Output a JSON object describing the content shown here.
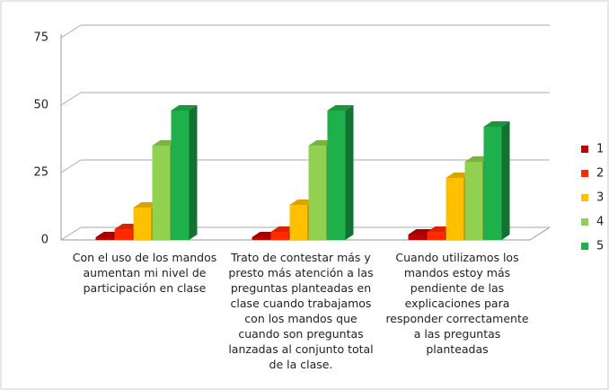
{
  "chart_data": {
    "type": "bar3d",
    "categories": [
      "Con el uso de los mandos aumentan mi nivel de participación en clase",
      "Trato de contestar más y presto más atención a las preguntas planteadas en clase cuando trabajamos con los mandos que cuando son preguntas lanzadas al conjunto total de la clase.",
      "Cuando utilizamos los mandos estoy más pendiente de las explicaciones para responder correctamente a las preguntas planteadas"
    ],
    "series": [
      {
        "name": "1",
        "color": "#c00000",
        "values": [
          1,
          1,
          2
        ]
      },
      {
        "name": "2",
        "color": "#ff2a00",
        "values": [
          4,
          3,
          3
        ]
      },
      {
        "name": "3",
        "color": "#ffc000",
        "values": [
          12,
          13,
          23
        ]
      },
      {
        "name": "4",
        "color": "#92d050",
        "values": [
          35,
          35,
          29
        ]
      },
      {
        "name": "5",
        "color": "#1db04b",
        "values": [
          48,
          48,
          42
        ]
      }
    ],
    "ylim": [
      0,
      75
    ],
    "yticks": [
      0,
      25,
      50,
      75
    ],
    "grid": true,
    "legend": "right"
  }
}
